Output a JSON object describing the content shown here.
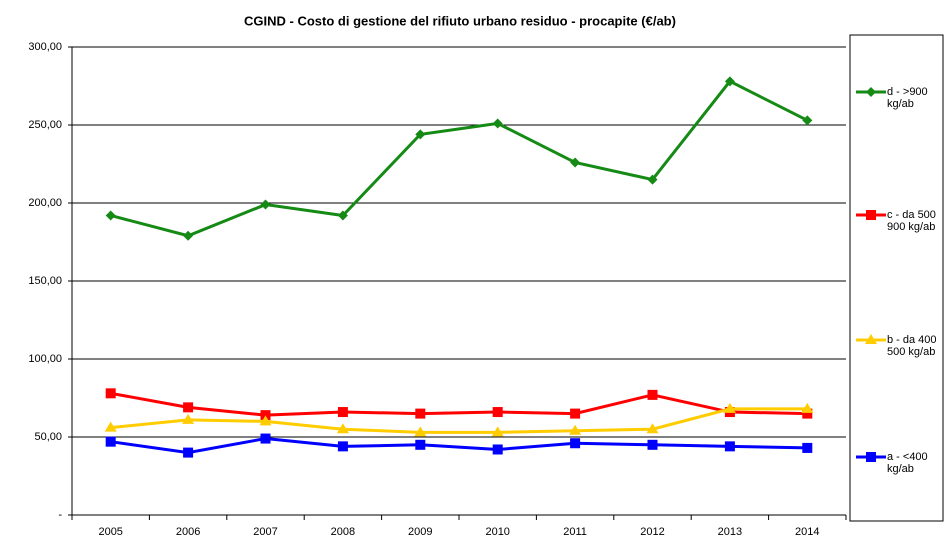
{
  "chart_data": {
    "type": "line",
    "title": "CGIND - Costo di gestione del rifiuto urbano residuo - procapite (€/ab)",
    "categories": [
      "2005",
      "2006",
      "2007",
      "2008",
      "2009",
      "2010",
      "2011",
      "2012",
      "2013",
      "2014"
    ],
    "series": [
      {
        "name": "d - >900 kg/ab",
        "color": "#158a15",
        "marker": "diamond",
        "values": [
          192,
          179,
          199,
          192,
          244,
          251,
          226,
          215,
          278,
          253
        ]
      },
      {
        "name": "c - da 500 900 kg/ab",
        "color": "#ff0000",
        "marker": "square",
        "values": [
          78,
          69,
          64,
          66,
          65,
          66,
          65,
          77,
          66,
          65
        ]
      },
      {
        "name": "b - da 400 500 kg/ab",
        "color": "#ffcc00",
        "marker": "triangle",
        "values": [
          56,
          61,
          60,
          55,
          53,
          53,
          54,
          55,
          68,
          68
        ]
      },
      {
        "name": "a - <400 kg/ab",
        "color": "#0000ff",
        "marker": "square",
        "values": [
          47,
          40,
          49,
          44,
          45,
          42,
          46,
          45,
          44,
          43
        ]
      }
    ],
    "ylim": [
      0,
      300
    ],
    "yticks": [
      {
        "value": 0,
        "label": "-"
      },
      {
        "value": 50,
        "label": "50,00"
      },
      {
        "value": 100,
        "label": "100,00"
      },
      {
        "value": 150,
        "label": "150,00"
      },
      {
        "value": 200,
        "label": "200,00"
      },
      {
        "value": 250,
        "label": "250,00"
      },
      {
        "value": 300,
        "label": "300,00"
      }
    ],
    "grid": true,
    "legend": "right"
  }
}
